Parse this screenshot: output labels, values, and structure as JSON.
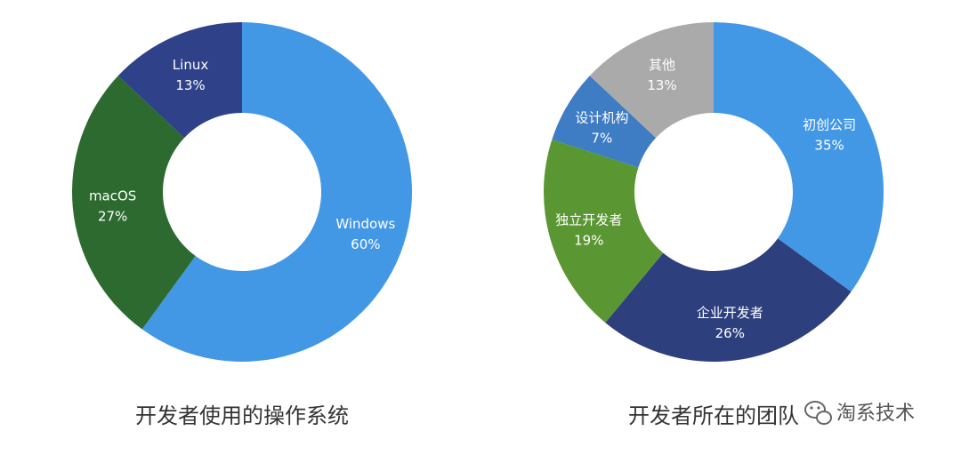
{
  "chart_data": [
    {
      "type": "pie",
      "title": "开发者使用的操作系统",
      "slices": [
        {
          "name": "Windows",
          "label": "60%",
          "value": 60,
          "color": "#4398E6"
        },
        {
          "name": "macOS",
          "label": "27%",
          "value": 27,
          "color": "#2C6A30"
        },
        {
          "name": "Linux",
          "label": "13%",
          "value": 13,
          "color": "#2E4189"
        }
      ]
    },
    {
      "type": "pie",
      "title": "开发者所在的团队",
      "slices": [
        {
          "name": "初创公司",
          "label": "35%",
          "value": 35,
          "color": "#4398E6"
        },
        {
          "name": "企业开发者",
          "label": "26%",
          "value": 26,
          "color": "#2E3F7E"
        },
        {
          "name": "独立开发者",
          "label": "19%",
          "value": 19,
          "color": "#5A9732"
        },
        {
          "name": "设计机构",
          "label": "7%",
          "value": 7,
          "color": "#3E7CC4"
        },
        {
          "name": "其他",
          "label": "13%",
          "value": 13,
          "color": "#AAAAAA"
        }
      ]
    }
  ],
  "watermark": {
    "text": "淘系技术",
    "icon": "wechat-icon"
  }
}
